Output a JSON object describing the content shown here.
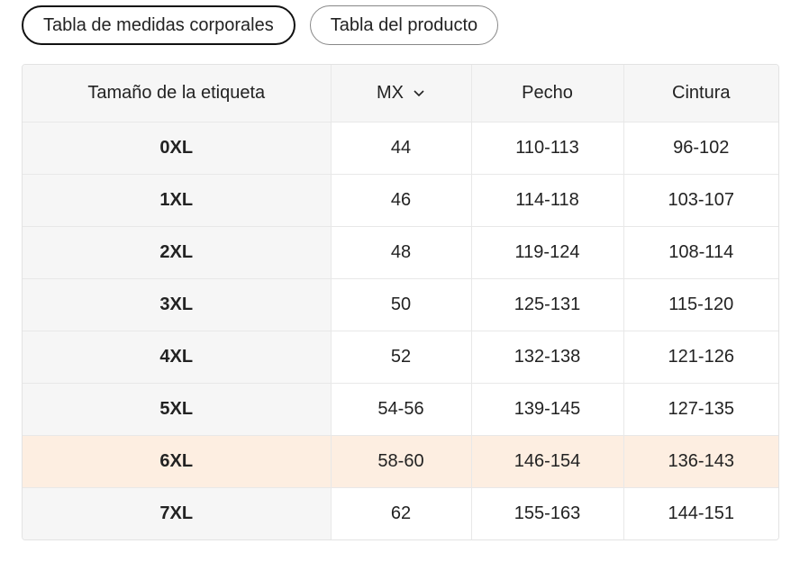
{
  "tabs": [
    "Tabla de medidas corporales",
    "Tabla del producto"
  ],
  "table": {
    "header": [
      "Tamaño de la etiqueta",
      "MX",
      "Pecho",
      "Cintura"
    ],
    "rows": [
      [
        "0XL",
        "44",
        "110-113",
        "96-102"
      ],
      [
        "1XL",
        "46",
        "114-118",
        "103-107"
      ],
      [
        "2XL",
        "48",
        "119-124",
        "108-114"
      ],
      [
        "3XL",
        "50",
        "125-131",
        "115-120"
      ],
      [
        "4XL",
        "52",
        "132-138",
        "121-126"
      ],
      [
        "5XL",
        "54-56",
        "139-145",
        "127-135"
      ],
      [
        "6XL",
        "58-60",
        "146-154",
        "136-143"
      ],
      [
        "7XL",
        "62",
        "155-163",
        "144-151"
      ]
    ]
  }
}
